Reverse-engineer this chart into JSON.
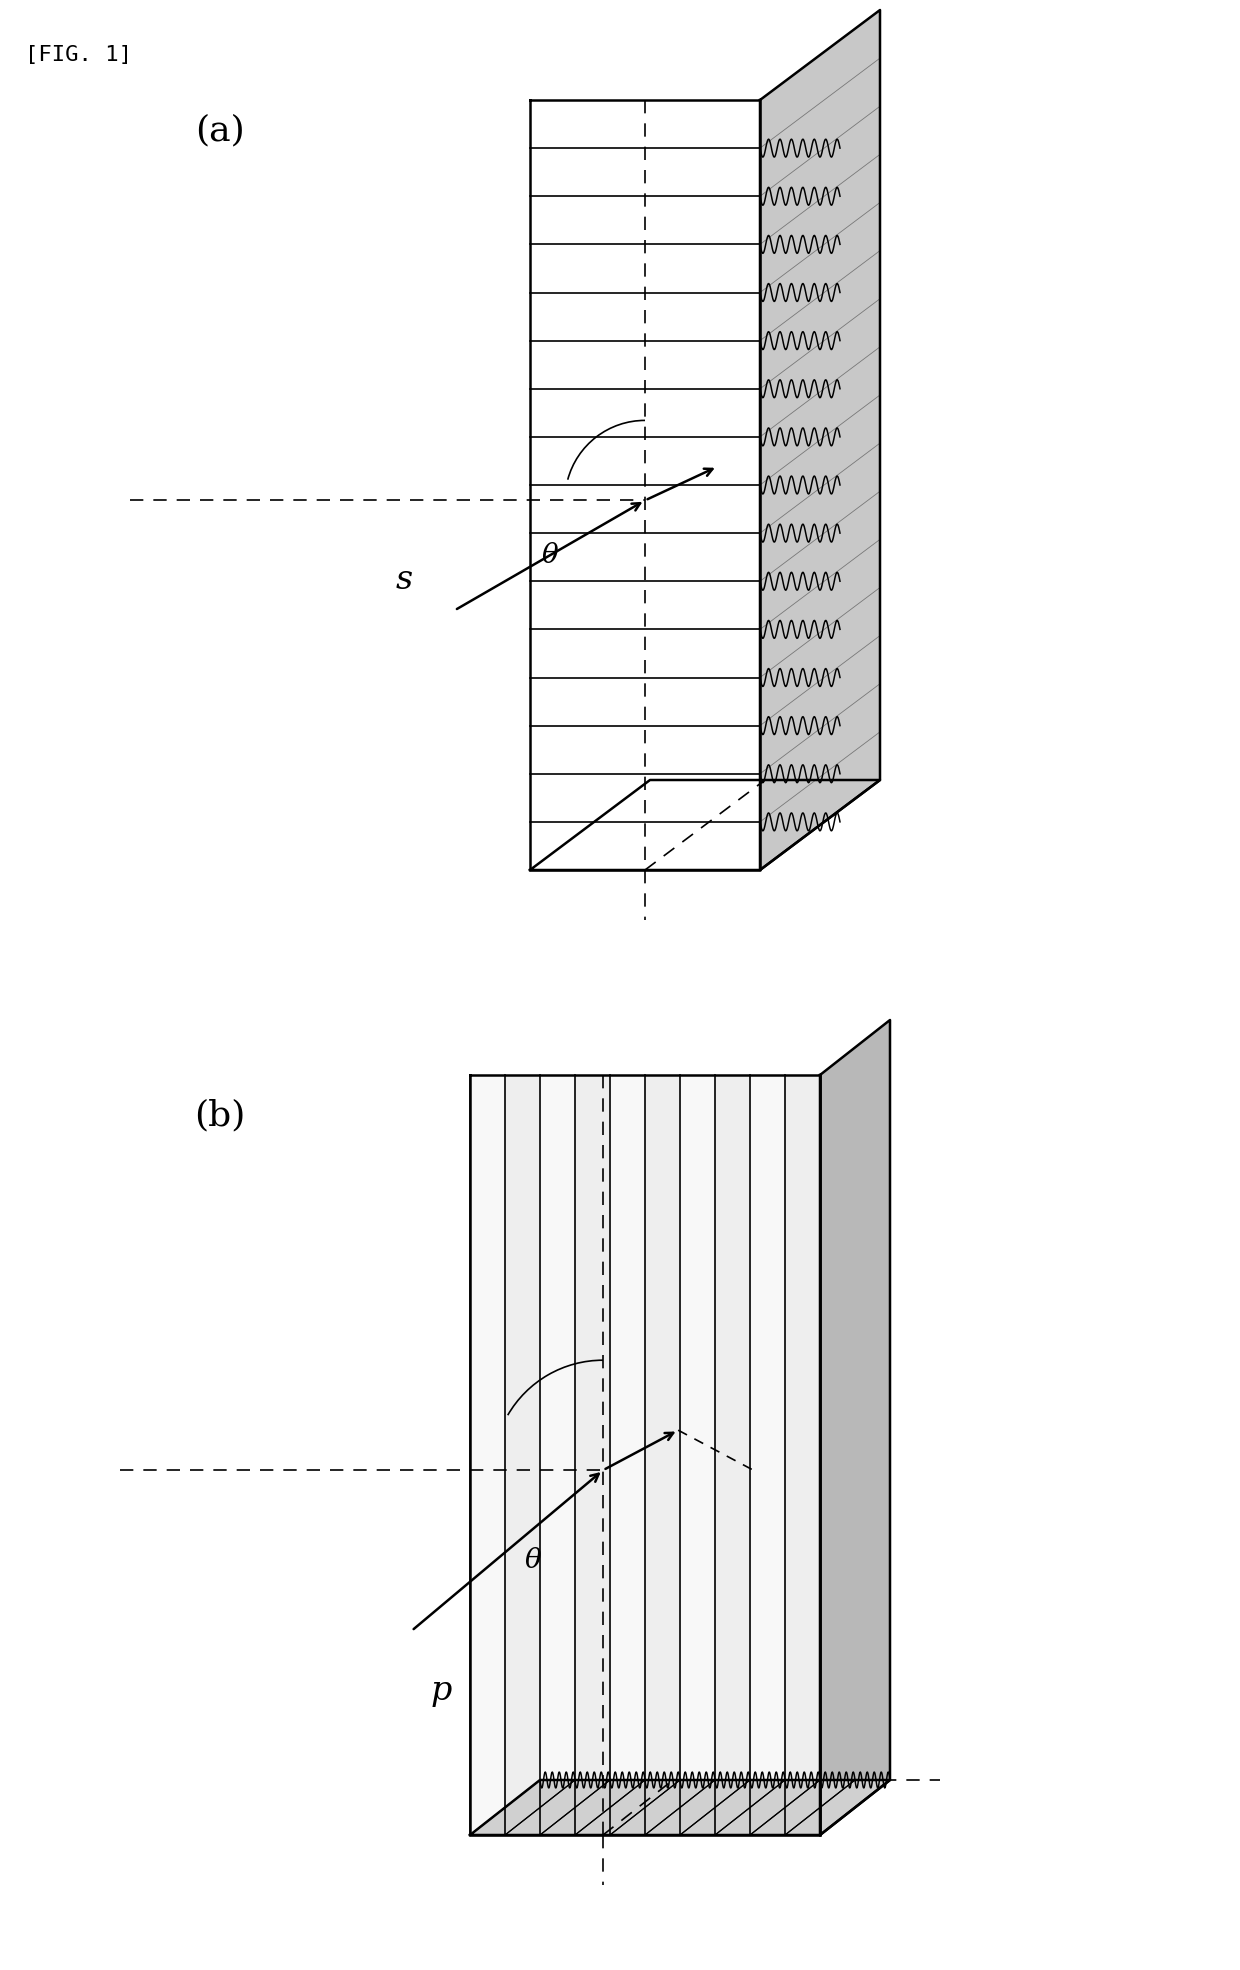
{
  "fig_label": "[FIG. 1]",
  "panel_a_label": "(a)",
  "panel_b_label": "(b)",
  "label_s": "s",
  "label_p": "p",
  "label_theta": "θ",
  "bg_color": "#ffffff",
  "line_color": "#000000",
  "n_grooves_a": 15,
  "n_grooves_b": 10,
  "lw": 1.2,
  "lw_thick": 1.8
}
